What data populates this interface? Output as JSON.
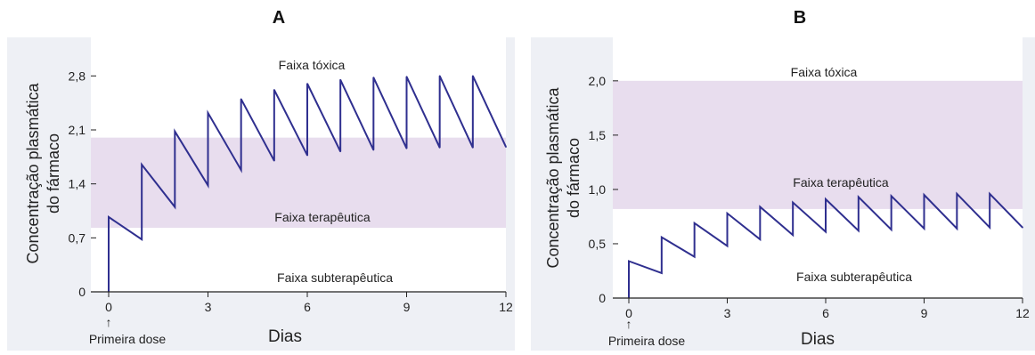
{
  "colors": {
    "panel_bg": "#eef0f5",
    "plot_bg": "#ffffff",
    "therapeutic_band": "#e8ddee",
    "line": "#2f2f8f",
    "axis": "#222222"
  },
  "chart_data": [
    {
      "type": "line",
      "panel_label": "A",
      "title": "",
      "xlabel": "Dias",
      "ylabel": "Concentração plasmática do fármaco",
      "xlim": [
        0,
        12
      ],
      "ylim": [
        0,
        3.3
      ],
      "xticks": [
        0,
        3,
        6,
        9,
        12
      ],
      "xtick_labels": [
        "0",
        "3",
        "6",
        "9",
        "12"
      ],
      "yticks": [
        0,
        0.7,
        1.4,
        2.1,
        2.8
      ],
      "ytick_labels": [
        "0",
        "0,7",
        "1,4",
        "2,1",
        "2,8"
      ],
      "therapeutic_range": [
        0.83,
        2.0
      ],
      "annotations": {
        "toxic": "Faixa tóxica",
        "therapeutic": "Faixa terapêutica",
        "subtherapeutic": "Faixa subterapêutica",
        "first_dose": "Primeira dose",
        "arrow": "↑"
      },
      "dose_days": [
        0,
        1,
        2,
        3,
        4,
        5,
        6,
        7,
        8,
        9,
        10,
        11
      ],
      "peaks": [
        0.97,
        1.65,
        2.08,
        2.32,
        2.5,
        2.62,
        2.7,
        2.75,
        2.78,
        2.79,
        2.8,
        2.8
      ],
      "troughs": [
        0.68,
        1.1,
        1.38,
        1.58,
        1.7,
        1.77,
        1.82,
        1.84,
        1.86,
        1.87,
        1.87,
        1.88
      ]
    },
    {
      "type": "line",
      "panel_label": "B",
      "title": "",
      "xlabel": "Dias",
      "ylabel": "Concentração plasmática do fármaco",
      "xlim": [
        0,
        12
      ],
      "ylim": [
        0,
        2.4
      ],
      "xticks": [
        0,
        3,
        6,
        9,
        12
      ],
      "xtick_labels": [
        "0",
        "3",
        "6",
        "9",
        "12"
      ],
      "yticks": [
        0,
        0.5,
        1.0,
        1.5,
        2.0
      ],
      "ytick_labels": [
        "0",
        "0,5",
        "1,0",
        "1,5",
        "2,0"
      ],
      "therapeutic_range": [
        0.82,
        2.0
      ],
      "annotations": {
        "toxic": "Faixa tóxica",
        "therapeutic": "Faixa terapêutica",
        "subtherapeutic": "Faixa subterapêutica",
        "first_dose": "Primeira dose",
        "arrow": "↑"
      },
      "dose_days": [
        0,
        1,
        2,
        3,
        4,
        5,
        6,
        7,
        8,
        9,
        10,
        11
      ],
      "peaks": [
        0.34,
        0.56,
        0.69,
        0.78,
        0.84,
        0.88,
        0.91,
        0.93,
        0.94,
        0.95,
        0.96,
        0.96
      ],
      "troughs": [
        0.23,
        0.38,
        0.48,
        0.54,
        0.58,
        0.61,
        0.62,
        0.63,
        0.64,
        0.64,
        0.65,
        0.65
      ]
    }
  ]
}
